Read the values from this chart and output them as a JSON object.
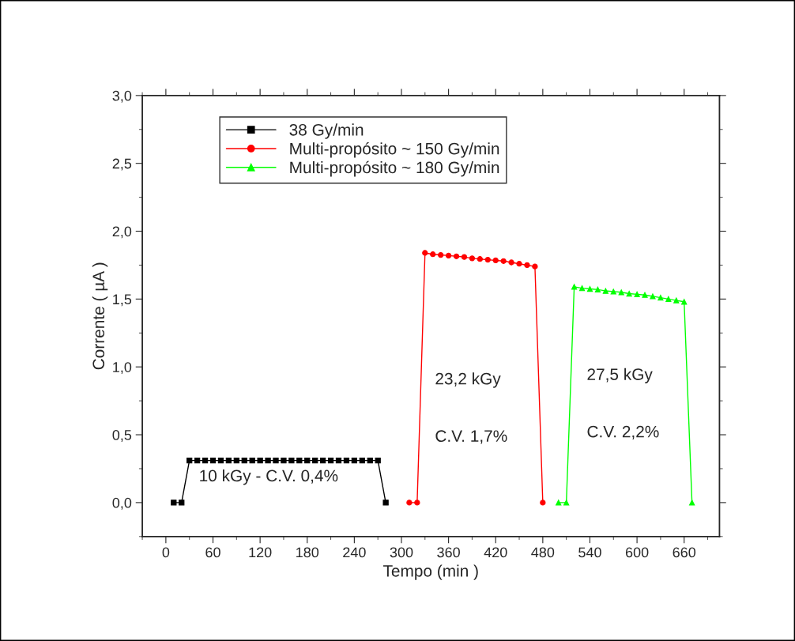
{
  "chart_data": {
    "type": "line",
    "xlabel": "Tempo (min )",
    "ylabel": "Corrente ( µA )",
    "xlim": [
      -30,
      705
    ],
    "ylim": [
      -0.25,
      3.0
    ],
    "xticks": [
      0,
      60,
      120,
      180,
      240,
      300,
      360,
      420,
      480,
      540,
      600,
      660
    ],
    "yticks": [
      {
        "value": 0,
        "label": "0,0"
      },
      {
        "value": 0.5,
        "label": "0,5"
      },
      {
        "value": 1.0,
        "label": "1,0"
      },
      {
        "value": 1.5,
        "label": "1,5"
      },
      {
        "value": 2.0,
        "label": "2,0"
      },
      {
        "value": 2.5,
        "label": "2,5"
      },
      {
        "value": 3.0,
        "label": "3,0"
      }
    ],
    "grid": false,
    "legend": "top left",
    "series": [
      {
        "name": "38 Gy/min",
        "color": "#000000",
        "marker": "square",
        "x": [
          10,
          20,
          30,
          40,
          50,
          60,
          70,
          80,
          90,
          100,
          110,
          120,
          130,
          140,
          150,
          160,
          170,
          180,
          190,
          200,
          210,
          220,
          230,
          240,
          250,
          260,
          270,
          280
        ],
        "values": [
          0,
          0,
          0.31,
          0.31,
          0.31,
          0.31,
          0.31,
          0.31,
          0.31,
          0.31,
          0.31,
          0.31,
          0.31,
          0.31,
          0.31,
          0.31,
          0.31,
          0.31,
          0.31,
          0.31,
          0.31,
          0.31,
          0.31,
          0.31,
          0.31,
          0.31,
          0.31,
          0
        ]
      },
      {
        "name": "Multi-propósito ~ 150 Gy/min",
        "color": "#ff0000",
        "marker": "circle",
        "x": [
          310,
          320,
          330,
          340,
          350,
          360,
          370,
          380,
          390,
          400,
          410,
          420,
          430,
          440,
          450,
          460,
          470,
          480
        ],
        "values": [
          0,
          0,
          1.84,
          1.83,
          1.825,
          1.82,
          1.815,
          1.81,
          1.8,
          1.795,
          1.79,
          1.785,
          1.78,
          1.77,
          1.76,
          1.75,
          1.74,
          0
        ]
      },
      {
        "name": "Multi-propósito ~ 180 Gy/min",
        "color": "#00ff00",
        "marker": "triangle",
        "x": [
          500,
          510,
          520,
          530,
          540,
          550,
          560,
          570,
          580,
          590,
          600,
          610,
          620,
          630,
          640,
          650,
          660,
          670
        ],
        "values": [
          0,
          0,
          1.59,
          1.58,
          1.575,
          1.57,
          1.56,
          1.555,
          1.55,
          1.54,
          1.535,
          1.53,
          1.52,
          1.51,
          1.5,
          1.49,
          1.48,
          0
        ]
      }
    ],
    "annotations": [
      "10 kGy - C.V. 0,4%",
      "23,2 kGy",
      "C.V. 1,7%",
      "27,5 kGy",
      "C.V. 2,2%"
    ]
  }
}
